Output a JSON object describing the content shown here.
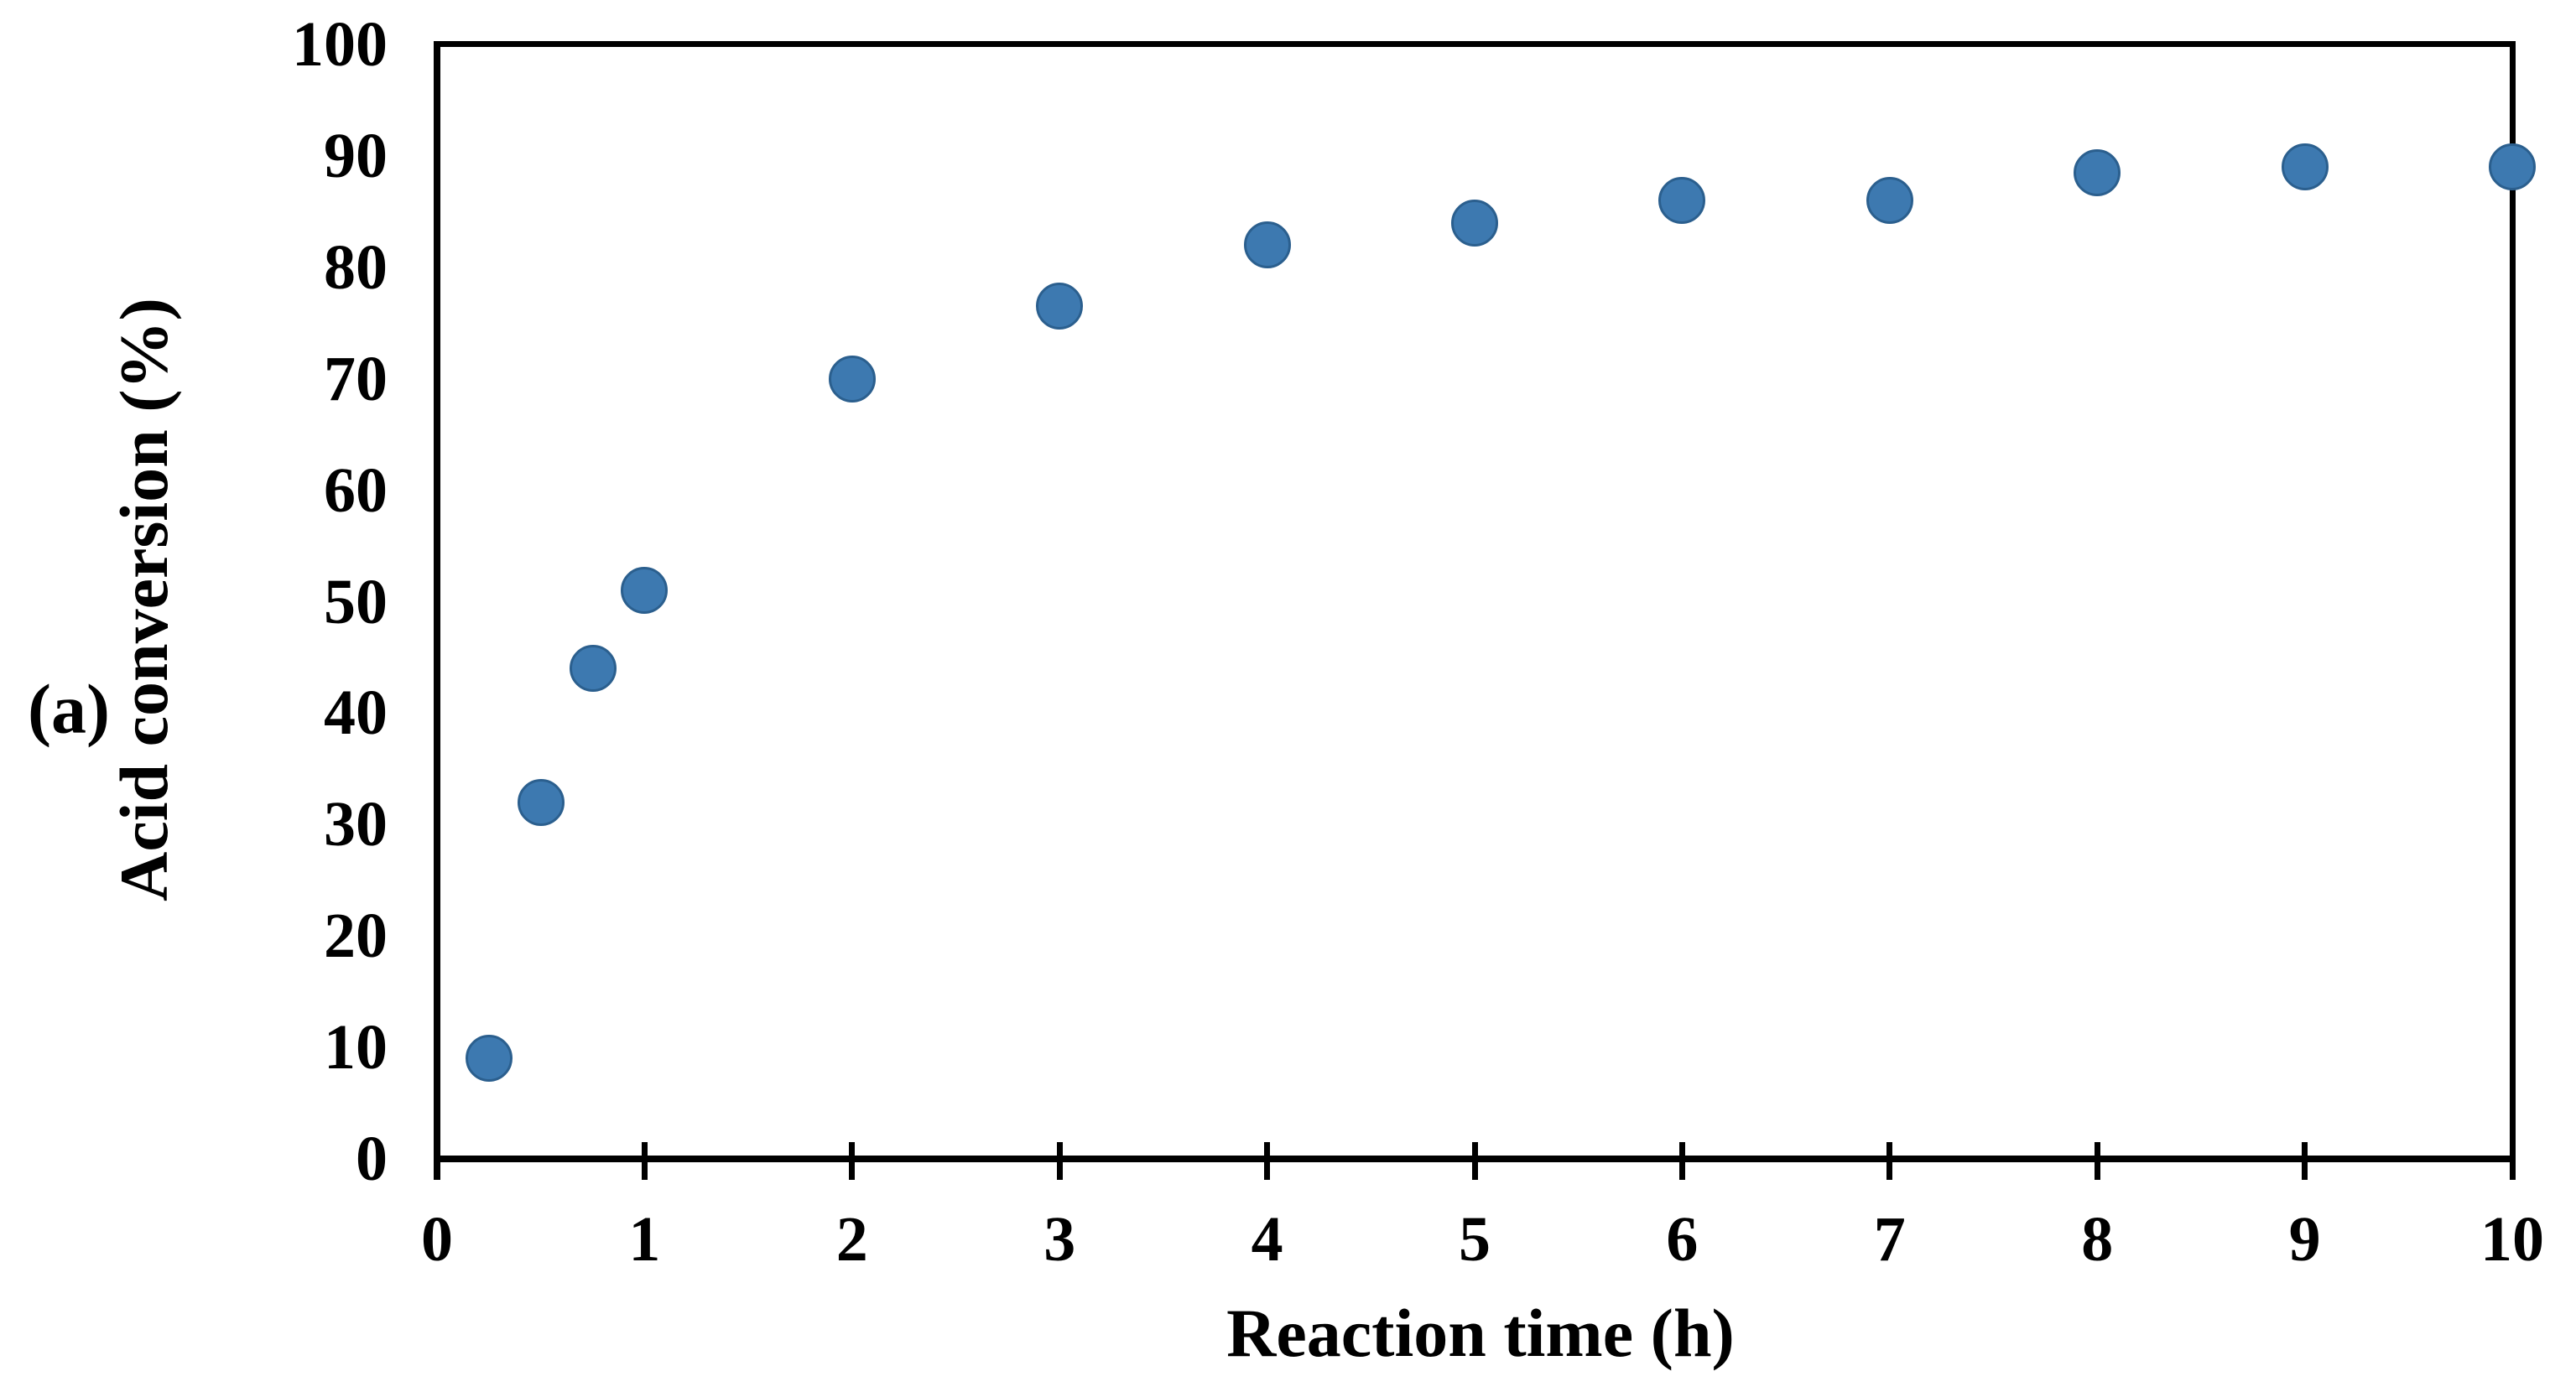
{
  "figure": {
    "panel_label": "(a)"
  },
  "chart_data": {
    "type": "scatter",
    "xlabel": "Reaction time (h)",
    "ylabel": "Acid conversion (%)",
    "x": [
      0.25,
      0.5,
      0.75,
      1,
      2,
      3,
      4,
      5,
      6,
      7,
      8,
      9,
      10
    ],
    "y": [
      9,
      32,
      44,
      51,
      70,
      76.5,
      82,
      84,
      86,
      86,
      88.5,
      89,
      89
    ],
    "xlim": [
      0,
      10
    ],
    "ylim": [
      0,
      100
    ],
    "x_ticks": [
      0,
      1,
      2,
      3,
      4,
      5,
      6,
      7,
      8,
      9,
      10
    ],
    "y_ticks": [
      0,
      10,
      20,
      30,
      40,
      50,
      60,
      70,
      80,
      90,
      100
    ],
    "grid": false,
    "legend_position": "none",
    "marker": {
      "shape": "circle",
      "fill_color": "#3D79B0",
      "edge_color": "#2B5F8E"
    },
    "axis_color": "#000000",
    "background_color": "#FFFFFF"
  }
}
